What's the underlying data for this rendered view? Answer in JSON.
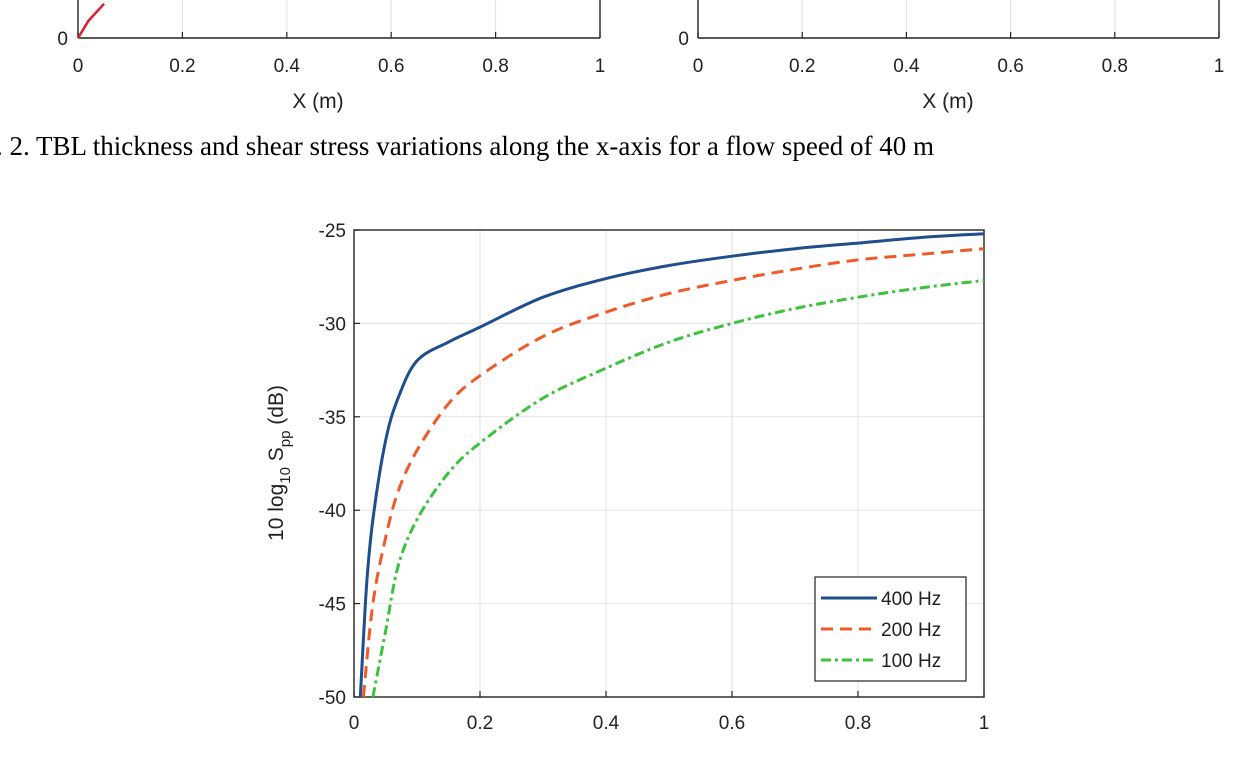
{
  "caption": ". 2. TBL thickness and shear stress variations along the x-axis for a flow speed of 40 m",
  "chart_data": [
    {
      "type": "line",
      "title": "",
      "xlabel": "X (m)",
      "ylabel": "",
      "xlim": [
        0,
        1
      ],
      "x_ticks": [
        "0",
        "0.2",
        "0.4",
        "0.6",
        "0.8",
        "1"
      ],
      "y_ticks_visible": [
        "0"
      ],
      "series": [
        {
          "name": "curve",
          "color": "#d9253a",
          "x": [
            0,
            0.02,
            0.05
          ],
          "y_fraction_visible": [
            0,
            0.45,
            0.9
          ]
        }
      ]
    },
    {
      "type": "line",
      "title": "",
      "xlabel": "X (m)",
      "ylabel": "",
      "xlim": [
        0,
        1
      ],
      "x_ticks": [
        "0",
        "0.2",
        "0.4",
        "0.6",
        "0.8",
        "1"
      ],
      "y_ticks_visible": [
        "0"
      ],
      "series": []
    },
    {
      "type": "line",
      "title": "",
      "xlabel": "",
      "ylabel": "10 log10 Spp (dB)",
      "ylabel_parts": {
        "prefix": "10 log",
        "sub1": "10",
        "mid": " S",
        "sub2": "pp",
        "suffix": " (dB)"
      },
      "xlim": [
        0,
        1
      ],
      "ylim": [
        -50,
        -25
      ],
      "x_ticks": [
        0,
        0.2,
        0.4,
        0.6,
        0.8,
        1
      ],
      "x_tick_labels": [
        "0",
        "0.2",
        "0.4",
        "0.6",
        "0.8",
        "1"
      ],
      "y_ticks": [
        -25,
        -30,
        -35,
        -40,
        -45,
        -50
      ],
      "y_tick_labels": [
        "-25",
        "-30",
        "-35",
        "-40",
        "-45",
        "-50"
      ],
      "grid": true,
      "legend_position": "bottom-right",
      "series": [
        {
          "name": "400 Hz",
          "color": "#1f4e8c",
          "style": "solid",
          "x": [
            0.01,
            0.02,
            0.03,
            0.05,
            0.07,
            0.1,
            0.15,
            0.2,
            0.3,
            0.4,
            0.5,
            0.6,
            0.7,
            0.8,
            0.9,
            1.0
          ],
          "y": [
            -50,
            -44,
            -40.5,
            -36.3,
            -34,
            -32,
            -31,
            -30.2,
            -28.6,
            -27.6,
            -26.9,
            -26.4,
            -26.0,
            -25.7,
            -25.4,
            -25.2
          ]
        },
        {
          "name": "200 Hz",
          "color": "#f05a28",
          "style": "dashed",
          "x": [
            0.015,
            0.03,
            0.05,
            0.07,
            0.1,
            0.15,
            0.2,
            0.3,
            0.4,
            0.5,
            0.6,
            0.7,
            0.8,
            0.9,
            1.0
          ],
          "y": [
            -50,
            -45,
            -41.5,
            -39,
            -36.8,
            -34.3,
            -32.8,
            -30.7,
            -29.4,
            -28.4,
            -27.7,
            -27.1,
            -26.6,
            -26.3,
            -26.0
          ]
        },
        {
          "name": "100 Hz",
          "color": "#3cc23c",
          "style": "dashdot",
          "x": [
            0.03,
            0.05,
            0.07,
            0.1,
            0.15,
            0.2,
            0.3,
            0.4,
            0.5,
            0.6,
            0.7,
            0.8,
            0.9,
            1.0
          ],
          "y": [
            -50,
            -46.5,
            -43,
            -40.5,
            -38,
            -36.4,
            -34,
            -32.4,
            -31.0,
            -30.0,
            -29.2,
            -28.6,
            -28.1,
            -27.7
          ]
        }
      ]
    }
  ]
}
